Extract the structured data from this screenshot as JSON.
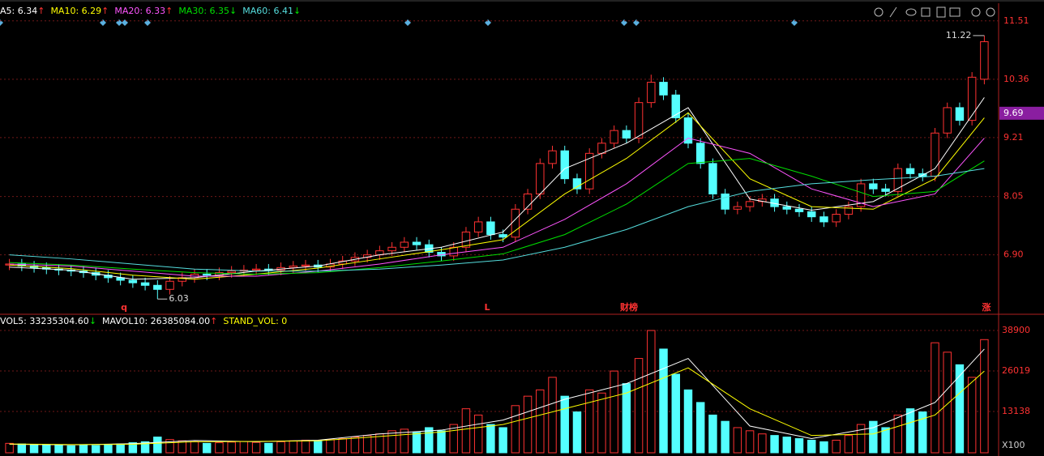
{
  "chart_data": {
    "type": "candlestick",
    "header": [
      {
        "text": "A5: 6.34",
        "arrow": "↑",
        "color": "#ffffff"
      },
      {
        "text": "MA10: 6.29",
        "arrow": "↑",
        "color": "#ffff00"
      },
      {
        "text": "MA20: 6.33",
        "arrow": "↑",
        "color": "#ff55ff"
      },
      {
        "text": "MA30: 6.35",
        "arrow": "↓",
        "color": "#00e000"
      },
      {
        "text": "MA60: 6.41",
        "arrow": "↓",
        "color": "#55dddd"
      }
    ],
    "volume_header": [
      {
        "text": "VOL5: 33235304.60",
        "arrow": "↓",
        "color": "#ffffff"
      },
      {
        "text": "MAVOL10: 26385084.00",
        "arrow": "↑",
        "color": "#ffffff"
      },
      {
        "text": "STAND_VOL: 0",
        "arrow": null,
        "color": "#ffff00"
      }
    ],
    "open": [
      6.7,
      6.72,
      6.68,
      6.65,
      6.62,
      6.6,
      6.58,
      6.55,
      6.5,
      6.45,
      6.4,
      6.35,
      6.3,
      6.22,
      6.38,
      6.45,
      6.52,
      6.5,
      6.55,
      6.58,
      6.6,
      6.62,
      6.6,
      6.65,
      6.68,
      6.7,
      6.66,
      6.72,
      6.78,
      6.85,
      6.9,
      6.98,
      7.05,
      7.15,
      7.1,
      6.95,
      6.88,
      7.05,
      7.35,
      7.55,
      7.3,
      7.25,
      7.8,
      8.1,
      8.7,
      8.95,
      8.4,
      8.2,
      8.9,
      9.1,
      9.35,
      9.2,
      9.9,
      10.3,
      10.05,
      9.6,
      9.1,
      8.7,
      8.1,
      7.8,
      7.85,
      7.95,
      8.0,
      7.85,
      7.8,
      7.75,
      7.65,
      7.55,
      7.7,
      7.85,
      8.3,
      8.2,
      8.15,
      8.6,
      8.5,
      8.45,
      9.3,
      9.8,
      9.55,
      10.36
    ],
    "high": [
      6.82,
      6.82,
      6.78,
      6.75,
      6.72,
      6.7,
      6.68,
      6.65,
      6.6,
      6.55,
      6.5,
      6.45,
      6.4,
      6.48,
      6.55,
      6.62,
      6.62,
      6.65,
      6.68,
      6.7,
      6.72,
      6.72,
      6.75,
      6.78,
      6.8,
      6.8,
      6.82,
      6.88,
      6.95,
      7.0,
      7.08,
      7.15,
      7.25,
      7.25,
      7.2,
      7.05,
      7.15,
      7.45,
      7.65,
      7.65,
      7.4,
      7.9,
      8.2,
      8.8,
      9.05,
      9.05,
      8.5,
      9.0,
      9.2,
      9.45,
      9.45,
      10.0,
      10.45,
      10.4,
      10.15,
      9.7,
      9.2,
      8.8,
      8.2,
      7.95,
      8.05,
      8.1,
      8.1,
      7.95,
      7.9,
      7.85,
      7.75,
      7.8,
      7.95,
      8.4,
      8.4,
      8.3,
      8.7,
      8.7,
      8.6,
      9.4,
      9.9,
      9.9,
      10.5,
      11.22
    ],
    "low": [
      6.6,
      6.58,
      6.55,
      6.52,
      6.5,
      6.48,
      6.45,
      6.4,
      6.35,
      6.3,
      6.25,
      6.2,
      6.03,
      6.12,
      6.28,
      6.35,
      6.4,
      6.4,
      6.45,
      6.48,
      6.5,
      6.5,
      6.5,
      6.55,
      6.58,
      6.56,
      6.56,
      6.62,
      6.68,
      6.75,
      6.8,
      6.88,
      6.95,
      7.0,
      6.85,
      6.78,
      6.78,
      6.95,
      7.25,
      7.2,
      7.15,
      7.15,
      7.7,
      8.0,
      8.6,
      8.3,
      8.1,
      8.1,
      8.8,
      9.0,
      9.1,
      9.1,
      9.8,
      9.95,
      9.5,
      9.0,
      8.6,
      8.0,
      7.7,
      7.7,
      7.75,
      7.85,
      7.75,
      7.7,
      7.65,
      7.55,
      7.45,
      7.45,
      7.6,
      7.75,
      8.1,
      8.05,
      8.05,
      8.4,
      8.35,
      8.35,
      9.2,
      9.45,
      9.45,
      10.26
    ],
    "close": [
      6.72,
      6.68,
      6.65,
      6.62,
      6.6,
      6.58,
      6.55,
      6.5,
      6.45,
      6.4,
      6.35,
      6.3,
      6.22,
      6.38,
      6.45,
      6.52,
      6.5,
      6.55,
      6.58,
      6.6,
      6.62,
      6.6,
      6.65,
      6.68,
      6.7,
      6.66,
      6.72,
      6.78,
      6.85,
      6.9,
      6.98,
      7.05,
      7.15,
      7.1,
      6.95,
      6.88,
      7.05,
      7.35,
      7.55,
      7.3,
      7.25,
      7.8,
      8.1,
      8.7,
      8.95,
      8.4,
      8.2,
      8.9,
      9.1,
      9.35,
      9.2,
      9.9,
      10.3,
      10.05,
      9.6,
      9.1,
      8.7,
      8.1,
      7.8,
      7.85,
      7.95,
      8.0,
      7.85,
      7.8,
      7.75,
      7.65,
      7.55,
      7.7,
      7.85,
      8.3,
      8.2,
      8.15,
      8.6,
      8.5,
      8.45,
      9.3,
      9.8,
      9.55,
      10.4,
      11.1
    ],
    "volume": [
      3000,
      2800,
      2500,
      2600,
      2400,
      2200,
      2500,
      2300,
      2600,
      2800,
      3200,
      3500,
      5000,
      4200,
      3800,
      3500,
      3000,
      3200,
      3400,
      3600,
      3300,
      3000,
      3500,
      3800,
      4000,
      3600,
      4200,
      4500,
      5000,
      5500,
      6000,
      7000,
      7500,
      6500,
      8000,
      7000,
      9000,
      14000,
      12000,
      9000,
      8000,
      15000,
      18000,
      20000,
      24000,
      18000,
      13000,
      20000,
      19000,
      26000,
      22000,
      30000,
      38900,
      33000,
      25000,
      20000,
      16000,
      12000,
      10000,
      8000,
      7000,
      6000,
      5500,
      5000,
      4500,
      4000,
      3500,
      4000,
      5500,
      9000,
      10000,
      8000,
      12000,
      14000,
      13000,
      35000,
      32000,
      28000,
      24000,
      36000
    ],
    "ma_x": [
      0,
      5,
      10,
      15,
      20,
      25,
      30,
      35,
      40,
      45,
      50,
      55,
      60,
      65,
      70,
      75,
      79
    ],
    "ma_lines": [
      {
        "color": "#ffffff",
        "values": [
          6.66,
          6.6,
          6.42,
          6.45,
          6.58,
          6.68,
          6.9,
          7.05,
          7.35,
          8.6,
          9.1,
          9.8,
          8.0,
          7.78,
          7.95,
          8.6,
          10.0
        ]
      },
      {
        "color": "#ffff00",
        "values": [
          6.7,
          6.63,
          6.5,
          6.42,
          6.52,
          6.64,
          6.82,
          7.0,
          7.2,
          8.1,
          8.8,
          9.7,
          8.4,
          7.85,
          7.8,
          8.4,
          9.6
        ]
      },
      {
        "color": "#ff55ff",
        "values": [
          6.72,
          6.68,
          6.58,
          6.48,
          6.48,
          6.58,
          6.72,
          6.9,
          7.05,
          7.6,
          8.3,
          9.2,
          8.9,
          8.2,
          7.85,
          8.1,
          9.2
        ]
      },
      {
        "color": "#00e000",
        "values": [
          6.75,
          6.7,
          6.62,
          6.55,
          6.52,
          6.55,
          6.65,
          6.78,
          6.92,
          7.3,
          7.9,
          8.7,
          8.8,
          8.45,
          8.05,
          8.15,
          8.75
        ]
      },
      {
        "color": "#55dddd",
        "values": [
          6.9,
          6.82,
          6.72,
          6.62,
          6.58,
          6.58,
          6.62,
          6.7,
          6.8,
          7.05,
          7.4,
          7.85,
          8.15,
          8.3,
          8.38,
          8.45,
          8.6
        ]
      }
    ],
    "vol_ma_lines": [
      {
        "color": "#ffffff",
        "values": [
          2700,
          2500,
          2900,
          3900,
          3500,
          4000,
          6000,
          7200,
          10400,
          17000,
          22000,
          30000,
          8500,
          4500,
          8000,
          16000,
          33000
        ]
      },
      {
        "color": "#ffff00",
        "values": [
          2800,
          2600,
          2700,
          3500,
          3600,
          3800,
          5200,
          6600,
          9000,
          14000,
          19000,
          27000,
          14000,
          5500,
          6000,
          12000,
          26000
        ]
      }
    ],
    "ylim": [
      5.73,
      11.57
    ],
    "yticks": [
      {
        "value": 6.9,
        "label": "6.90"
      },
      8.05,
      9.21,
      10.36,
      11.51
    ],
    "last_price": 9.69,
    "vol_ylim": [
      0,
      40200
    ],
    "vol_yticks": [
      13138,
      26019,
      38900
    ],
    "vol_unit": "X100",
    "events": [
      "q",
      "L",
      "财榜",
      "涨"
    ],
    "up_color": "#ff3232",
    "down_color": "#54ffff",
    "grid": true
  }
}
